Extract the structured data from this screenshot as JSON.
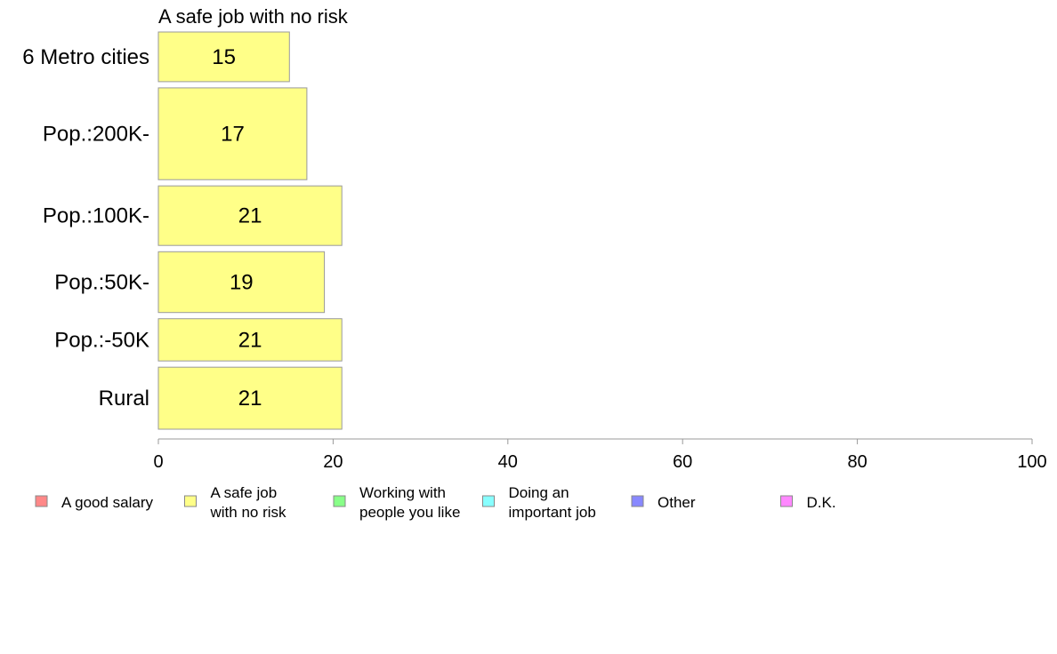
{
  "chart_data": {
    "type": "bar",
    "orientation": "horizontal",
    "title": "A safe job with no risk",
    "categories": [
      "6 Metro cities",
      "Pop.:200K-",
      "Pop.:100K-",
      "Pop.:50K-",
      "Pop.:-50K",
      "Rural"
    ],
    "series": [
      {
        "name": "A safe job with no risk",
        "values": [
          15,
          17,
          21,
          19,
          21,
          21
        ],
        "color": "#ffff88"
      }
    ],
    "data_labels": [
      "15",
      "17",
      "21",
      "19",
      "21",
      "21"
    ],
    "row_weights": [
      2,
      3.7,
      2.4,
      2.45,
      1.7,
      2.5
    ],
    "xlim": [
      0,
      100
    ],
    "xticks": [
      0,
      20,
      40,
      60,
      80,
      100
    ],
    "xlabel": "",
    "ylabel": "",
    "grid": false,
    "legend": {
      "position": "bottom",
      "items": [
        {
          "lines": [
            "A good salary"
          ],
          "color": "#ff8888"
        },
        {
          "lines": [
            "A safe job",
            "with no risk"
          ],
          "color": "#ffff88"
        },
        {
          "lines": [
            "Working with",
            "people you like"
          ],
          "color": "#88ff88"
        },
        {
          "lines": [
            "Doing an",
            "important job"
          ],
          "color": "#88ffff"
        },
        {
          "lines": [
            "Other"
          ],
          "color": "#8888ff"
        },
        {
          "lines": [
            "D.K."
          ],
          "color": "#ff88ff"
        }
      ]
    }
  }
}
